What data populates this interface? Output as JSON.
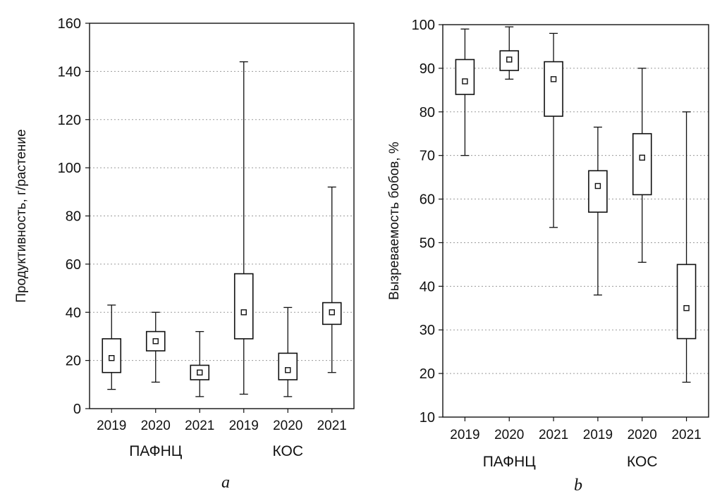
{
  "chart_data": [
    {
      "type": "box",
      "panel_label": "a",
      "ylabel": "Продуктивность, г/растение",
      "ylim": [
        0,
        160
      ],
      "yticks": [
        0,
        20,
        40,
        60,
        80,
        100,
        120,
        140,
        160
      ],
      "grid": "horizontal dotted",
      "categories": [
        "2019",
        "2020",
        "2021",
        "2019",
        "2020",
        "2021"
      ],
      "groups": [
        {
          "label": "ПАФНЦ",
          "indices": [
            0,
            1,
            2
          ]
        },
        {
          "label": "КОС",
          "indices": [
            3,
            4,
            5
          ]
        }
      ],
      "boxes": [
        {
          "min": 8,
          "q1": 15,
          "median": 21,
          "q3": 29,
          "max": 43
        },
        {
          "min": 11,
          "q1": 24,
          "median": 28,
          "q3": 32,
          "max": 40
        },
        {
          "min": 5,
          "q1": 12,
          "median": 15,
          "q3": 18,
          "max": 32
        },
        {
          "min": 6,
          "q1": 29,
          "median": 40,
          "q3": 56,
          "max": 144
        },
        {
          "min": 5,
          "q1": 12,
          "median": 16,
          "q3": 23,
          "max": 42
        },
        {
          "min": 15,
          "q1": 35,
          "median": 40,
          "q3": 44,
          "max": 92
        }
      ]
    },
    {
      "type": "box",
      "panel_label": "b",
      "ylabel": "Вызреваемость бобов, %",
      "ylim": [
        10,
        100
      ],
      "yticks": [
        10,
        20,
        30,
        40,
        50,
        60,
        70,
        80,
        90,
        100
      ],
      "grid": "horizontal dotted",
      "categories": [
        "2019",
        "2020",
        "2021",
        "2019",
        "2020",
        "2021"
      ],
      "groups": [
        {
          "label": "ПАФНЦ",
          "indices": [
            0,
            1,
            2
          ]
        },
        {
          "label": "КОС",
          "indices": [
            3,
            4,
            5
          ]
        }
      ],
      "boxes": [
        {
          "min": 70,
          "q1": 84,
          "median": 87,
          "q3": 92,
          "max": 99
        },
        {
          "min": 87.5,
          "q1": 89.5,
          "median": 92,
          "q3": 94,
          "max": 99.5
        },
        {
          "min": 53.5,
          "q1": 79,
          "median": 87.5,
          "q3": 91.5,
          "max": 98
        },
        {
          "min": 38,
          "q1": 57,
          "median": 63,
          "q3": 66.5,
          "max": 76.5
        },
        {
          "min": 45.5,
          "q1": 61,
          "median": 69.5,
          "q3": 75,
          "max": 90
        },
        {
          "min": 18,
          "q1": 28,
          "median": 35,
          "q3": 45,
          "max": 80
        }
      ]
    }
  ],
  "colors": {
    "stroke": "#111111",
    "grid": "#9a9a9a",
    "background": "#ffffff"
  }
}
